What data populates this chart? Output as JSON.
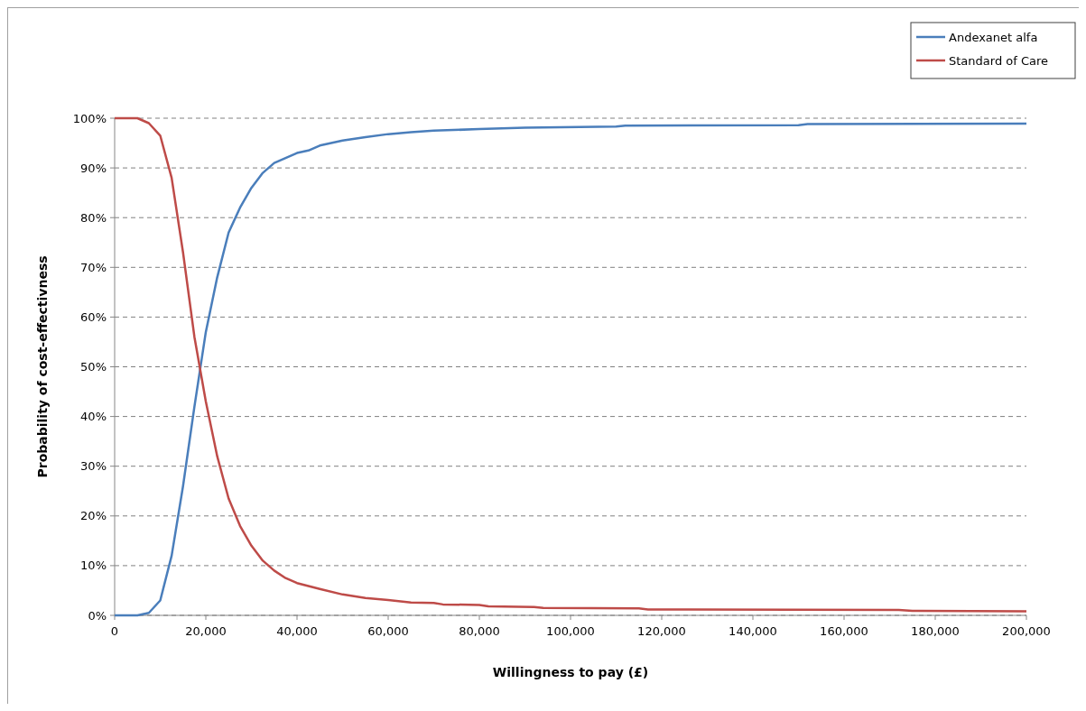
{
  "chart_data": {
    "type": "line",
    "xlabel": "Willingness to pay (£)",
    "ylabel": "Probability of cost-effectivness",
    "xlim": [
      0,
      200000
    ],
    "ylim": [
      0,
      100
    ],
    "xticks": [
      0,
      {
        "value": 20000,
        "label": "20,000"
      },
      {
        "value": 40000,
        "label": "40,000"
      },
      {
        "value": 60000,
        "label": "60,000"
      },
      {
        "value": 80000,
        "label": "80,000"
      },
      {
        "value": 100000,
        "label": "100,000"
      },
      {
        "value": 120000,
        "label": "120,000"
      },
      {
        "value": 140000,
        "label": "140,000"
      },
      {
        "value": 160000,
        "label": "160,000"
      },
      {
        "value": 180000,
        "label": "180,000"
      },
      {
        "value": 200000,
        "label": "200,000"
      }
    ],
    "yticks": [
      {
        "value": 0,
        "label": "0%"
      },
      {
        "value": 10,
        "label": "10%"
      },
      {
        "value": 20,
        "label": "20%"
      },
      {
        "value": 30,
        "label": "30%"
      },
      {
        "value": 40,
        "label": "40%"
      },
      {
        "value": 50,
        "label": "50%"
      },
      {
        "value": 60,
        "label": "60%"
      },
      {
        "value": 70,
        "label": "70%"
      },
      {
        "value": 80,
        "label": "80%"
      },
      {
        "value": 90,
        "label": "90%"
      },
      {
        "value": 100,
        "label": "100%"
      }
    ],
    "grid": "y",
    "legend": "top right",
    "marker": "none",
    "line_style": "solid",
    "series": [
      {
        "name": "Andexanet alfa",
        "color": "#4a7ebb",
        "x": [
          0,
          2500,
          5000,
          7500,
          10000,
          12500,
          15000,
          17500,
          20000,
          22500,
          25000,
          27500,
          30000,
          32500,
          35000,
          37500,
          40000,
          42500,
          45000,
          47500,
          50000,
          55000,
          60000,
          65000,
          70000,
          80000,
          90000,
          110000,
          112000,
          150000,
          152000,
          200000
        ],
        "values": [
          0,
          0,
          0,
          0.5,
          3,
          12,
          26,
          42,
          57,
          68,
          77,
          82,
          86,
          89,
          91,
          92,
          93,
          93.5,
          94.5,
          95,
          95.5,
          96.2,
          96.8,
          97.2,
          97.5,
          97.8,
          98.1,
          98.3,
          98.5,
          98.6,
          98.8,
          98.9
        ]
      },
      {
        "name": "Standard of Care",
        "color": "#be4b48",
        "x": [
          0,
          5000,
          7500,
          10000,
          12500,
          15000,
          17500,
          20000,
          22500,
          25000,
          27500,
          30000,
          32500,
          35000,
          37500,
          40000,
          45000,
          50000,
          55000,
          60000,
          65000,
          70000,
          72000,
          80000,
          82000,
          92000,
          94000,
          115000,
          117000,
          172000,
          175000,
          200000
        ],
        "values": [
          100,
          100,
          99,
          96.5,
          88,
          73,
          56,
          43,
          32,
          23.5,
          18,
          14,
          11,
          9,
          7.5,
          6.5,
          5.3,
          4.2,
          3.5,
          3.1,
          2.6,
          2.5,
          2.2,
          2.1,
          1.8,
          1.7,
          1.5,
          1.4,
          1.2,
          1.1,
          0.9,
          0.8
        ]
      }
    ]
  }
}
